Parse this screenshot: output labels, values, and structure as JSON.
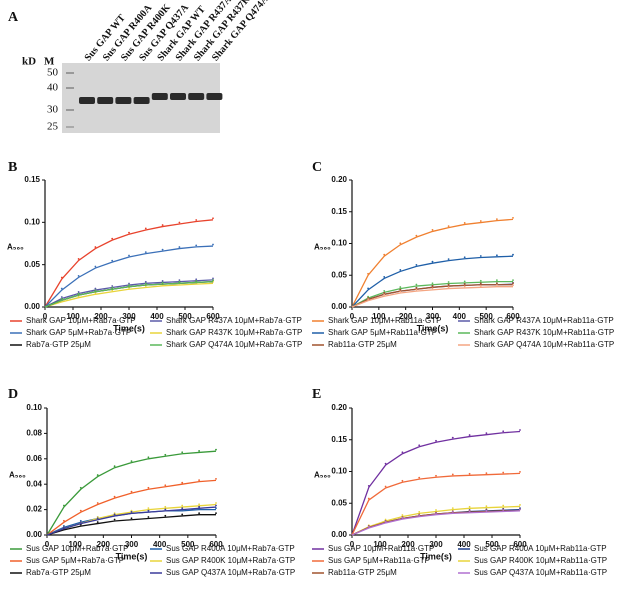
{
  "gel": {
    "panel": "A",
    "unit": "kD",
    "marker_label": "M",
    "markers": [
      50,
      40,
      30,
      25
    ],
    "lanes": [
      "Sus GAP WT",
      "Sus GAP R400A",
      "Sus GAP R400K",
      "Sus GAP Q437A",
      "Shark GAP WT",
      "Shark GAP R437A",
      "Shark GAP R437K",
      "Shark GAP Q474A"
    ]
  },
  "chart_data": [
    {
      "type": "line",
      "panel": "B",
      "ylabel": "A₅₆₀",
      "xlabel": "Time(s)",
      "x": [
        0,
        60,
        120,
        180,
        240,
        300,
        360,
        420,
        480,
        540,
        600
      ],
      "xlim": [
        0,
        600
      ],
      "xticks": [
        0,
        100,
        200,
        300,
        400,
        500,
        600
      ],
      "ylim": [
        0,
        0.15
      ],
      "yticks": [
        {
          "value": 0,
          "label": "0.00"
        },
        0.05,
        {
          "value": 0.1,
          "label": "0.10"
        },
        0.15
      ],
      "series": [
        {
          "name": "Shark GAP 10μM+Rab7a·GTP",
          "color": "#e8432d",
          "values": [
            0,
            0.033,
            0.055,
            0.069,
            0.079,
            0.086,
            0.091,
            0.095,
            0.098,
            0.101,
            0.103
          ]
        },
        {
          "name": "Shark GAP R437A 10μM+Rab7a·GTP",
          "color": "#5a5aa8",
          "values": [
            0,
            0.01,
            0.016,
            0.02,
            0.023,
            0.026,
            0.028,
            0.029,
            0.03,
            0.031,
            0.032
          ]
        },
        {
          "name": "Shark GAP 5μM+Rab7a·GTP",
          "color": "#3b70b8",
          "values": [
            0,
            0.02,
            0.035,
            0.046,
            0.053,
            0.059,
            0.063,
            0.066,
            0.069,
            0.071,
            0.072
          ]
        },
        {
          "name": "Shark GAP R437K 10μM+Rab7a·GTP",
          "color": "#e8d43a",
          "values": [
            0,
            0.006,
            0.011,
            0.015,
            0.018,
            0.021,
            0.023,
            0.025,
            0.026,
            0.027,
            0.028
          ]
        },
        {
          "name": "Rab7a·GTP  25μM",
          "color": "#111111",
          "values": [
            0,
            0.008,
            0.014,
            0.018,
            0.021,
            0.024,
            0.026,
            0.027,
            0.028,
            0.029,
            0.03
          ]
        },
        {
          "name": "Shark GAP Q474A 10μM+Rab7a·GTP",
          "color": "#5bb85b",
          "values": [
            0,
            0.008,
            0.014,
            0.018,
            0.021,
            0.024,
            0.026,
            0.027,
            0.028,
            0.029,
            0.03
          ]
        }
      ]
    },
    {
      "type": "line",
      "panel": "C",
      "ylabel": "A₅₆₀",
      "xlabel": "Time(s)",
      "x": [
        0,
        60,
        120,
        180,
        240,
        300,
        360,
        420,
        480,
        540,
        600
      ],
      "xlim": [
        0,
        600
      ],
      "xticks": [
        0,
        100,
        200,
        300,
        400,
        500,
        600
      ],
      "ylim": [
        0,
        0.2
      ],
      "yticks": [
        {
          "value": 0,
          "label": "0.00"
        },
        0.05,
        {
          "value": 0.1,
          "label": "0.10"
        },
        0.15,
        {
          "value": 0.2,
          "label": "0.20"
        }
      ],
      "series": [
        {
          "name": "Shark GAP 10μM+Rab11a·GTP",
          "color": "#f08030",
          "values": [
            0,
            0.05,
            0.08,
            0.098,
            0.11,
            0.119,
            0.125,
            0.13,
            0.133,
            0.136,
            0.138
          ]
        },
        {
          "name": "Shark GAP R437A 10μM+Rab11a·GTP",
          "color": "#5a5aa8",
          "values": [
            0,
            0.012,
            0.02,
            0.025,
            0.028,
            0.031,
            0.033,
            0.034,
            0.035,
            0.035,
            0.036
          ]
        },
        {
          "name": "Shark GAP 5μM+Rab11a·GTP",
          "color": "#1f5fa8",
          "values": [
            0,
            0.027,
            0.045,
            0.056,
            0.064,
            0.069,
            0.073,
            0.076,
            0.078,
            0.079,
            0.08
          ]
        },
        {
          "name": "Shark GAP R437K 10μM+Rab11a·GTP",
          "color": "#5bb85b",
          "values": [
            0,
            0.014,
            0.023,
            0.029,
            0.033,
            0.035,
            0.037,
            0.038,
            0.039,
            0.04,
            0.04
          ]
        },
        {
          "name": "Rab11a·GTP  25μM",
          "color": "#a0522d",
          "values": [
            0,
            0.012,
            0.02,
            0.025,
            0.028,
            0.031,
            0.033,
            0.034,
            0.035,
            0.035,
            0.035
          ]
        },
        {
          "name": "Shark GAP Q474A 10μM+Rab11a·GTP",
          "color": "#f4a582",
          "values": [
            0,
            0.01,
            0.017,
            0.022,
            0.025,
            0.027,
            0.029,
            0.03,
            0.031,
            0.032,
            0.032
          ]
        }
      ]
    },
    {
      "type": "line",
      "panel": "D",
      "ylabel": "A₅₆₀",
      "xlabel": "Time(s)",
      "x": [
        0,
        60,
        120,
        180,
        240,
        300,
        360,
        420,
        480,
        540,
        600
      ],
      "xlim": [
        0,
        600
      ],
      "xticks": [
        0,
        100,
        200,
        300,
        400,
        500,
        600
      ],
      "ylim": [
        0,
        0.1
      ],
      "yticks": [
        {
          "value": 0,
          "label": "0.00"
        },
        0.02,
        0.04,
        0.06,
        0.08,
        {
          "value": 0.1,
          "label": "0.10"
        }
      ],
      "series": [
        {
          "name": "Sus GAP 10μM+Rab7a·GTP",
          "color": "#3a9a3a",
          "values": [
            0,
            0.022,
            0.036,
            0.046,
            0.053,
            0.057,
            0.06,
            0.062,
            0.064,
            0.065,
            0.066
          ]
        },
        {
          "name": "Sus GAP R400A 10μM+Rab7a·GTP",
          "color": "#1f5fa8",
          "values": [
            0,
            0.006,
            0.01,
            0.013,
            0.015,
            0.017,
            0.018,
            0.019,
            0.019,
            0.02,
            0.02
          ]
        },
        {
          "name": "Sus GAP 5μM+Rab7a·GTP",
          "color": "#f0602a",
          "values": [
            0,
            0.01,
            0.018,
            0.024,
            0.029,
            0.033,
            0.036,
            0.038,
            0.04,
            0.042,
            0.043
          ]
        },
        {
          "name": "Sus GAP R400K 10μM+Rab7a·GTP",
          "color": "#e8d43a",
          "values": [
            0,
            0.005,
            0.009,
            0.013,
            0.016,
            0.018,
            0.02,
            0.021,
            0.022,
            0.023,
            0.024
          ]
        },
        {
          "name": "Rab7a·GTP  25μM",
          "color": "#111111",
          "values": [
            0,
            0.004,
            0.007,
            0.009,
            0.011,
            0.012,
            0.013,
            0.014,
            0.015,
            0.016,
            0.016
          ]
        },
        {
          "name": "Sus GAP Q437A 10μM+Rab7a·GTP",
          "color": "#3b3b9a",
          "values": [
            0,
            0.005,
            0.009,
            0.012,
            0.015,
            0.017,
            0.018,
            0.019,
            0.02,
            0.021,
            0.022
          ]
        }
      ]
    },
    {
      "type": "line",
      "panel": "E",
      "ylabel": "A₅₆₀",
      "xlabel": "Time(s)",
      "x": [
        0,
        60,
        120,
        180,
        240,
        300,
        360,
        420,
        480,
        540,
        600
      ],
      "xlim": [
        0,
        600
      ],
      "xticks": [
        0,
        100,
        200,
        300,
        400,
        500,
        600
      ],
      "ylim": [
        0,
        0.2
      ],
      "yticks": [
        {
          "value": 0,
          "label": "0.00"
        },
        0.05,
        {
          "value": 0.1,
          "label": "0.10"
        },
        0.15,
        {
          "value": 0.2,
          "label": "0.20"
        }
      ],
      "series": [
        {
          "name": "Sus GAP 10μM+Rab11a·GTP",
          "color": "#7030a0",
          "values": [
            0,
            0.075,
            0.11,
            0.128,
            0.139,
            0.146,
            0.151,
            0.155,
            0.158,
            0.161,
            0.163
          ]
        },
        {
          "name": "Sus GAP R400A 10μM+Rab11a·GTP",
          "color": "#1f3f8a",
          "values": [
            0,
            0.012,
            0.02,
            0.026,
            0.03,
            0.033,
            0.035,
            0.037,
            0.038,
            0.039,
            0.04
          ]
        },
        {
          "name": "Sus GAP 5μM+Rab11a·GTP",
          "color": "#f06a3a",
          "values": [
            0,
            0.055,
            0.074,
            0.083,
            0.088,
            0.091,
            0.093,
            0.094,
            0.095,
            0.096,
            0.097
          ]
        },
        {
          "name": "Sus GAP R400K 10μM+Rab11a·GTP",
          "color": "#e8d43a",
          "values": [
            0,
            0.013,
            0.022,
            0.029,
            0.034,
            0.037,
            0.04,
            0.042,
            0.043,
            0.044,
            0.045
          ]
        },
        {
          "name": "Rab11a·GTP  25μM",
          "color": "#a0522d",
          "values": [
            0,
            0.012,
            0.02,
            0.026,
            0.03,
            0.033,
            0.035,
            0.036,
            0.037,
            0.038,
            0.038
          ]
        },
        {
          "name": "Sus GAP Q437A 10μM+Rab11a·GTP",
          "color": "#b070d0",
          "values": [
            0,
            0.011,
            0.019,
            0.025,
            0.029,
            0.032,
            0.034,
            0.035,
            0.036,
            0.037,
            0.038
          ]
        }
      ]
    }
  ]
}
